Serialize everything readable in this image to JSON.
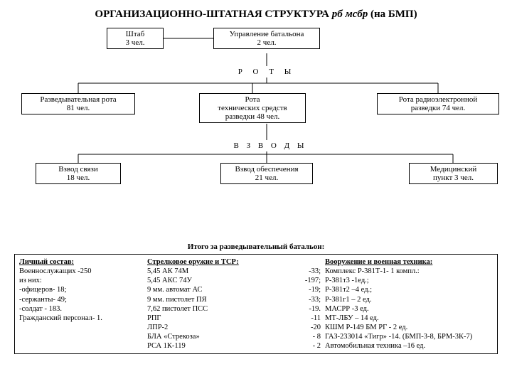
{
  "title_main": "ОРГАНИЗАЦИОННО-ШТАТНАЯ СТРУКТУРА",
  "title_italic": "рб мсбр",
  "title_tail": "(на БМП)",
  "boxes": {
    "shtab": "Штаб\n3 чел.",
    "upr": "Управление батальона\n2 чел.",
    "roty_label": "Р   О   Т   Ы",
    "rota1": "Разведывательная рота\n81 чел.",
    "rota2": "Рота\nтехнических средств\nразведки   48 чел.",
    "rota3": "Рота радиоэлектронной\nразведки      74 чел.",
    "vzvody_label": "В  З  В  О  Д  Ы",
    "vzv1": "Взвод связи\n18 чел.",
    "vzv2": "Взвод обеспечения\n21 чел.",
    "vzv3": "Медицинский\nпункт 3 чел."
  },
  "summary_title": "Итого за разведывательный батальон:",
  "personnel": {
    "head": "Личный состав:",
    "lines": [
      "Военнослужащих -250",
      "из них:",
      "-офицеров- 18;",
      "-сержанты- 49;",
      "-солдат   - 183.",
      "Гражданский персонал- 1."
    ]
  },
  "weapons": {
    "head": "Стрелковое оружие и ТСР:",
    "rows": [
      {
        "n": "5,45 АК 74М",
        "q": "-33;"
      },
      {
        "n": "5,45 АКС 74У",
        "q": "-197;"
      },
      {
        "n": "9 мм. автомат АС",
        "q": "-19;"
      },
      {
        "n": "9 мм. пистолет ПЯ",
        "q": "-33;"
      },
      {
        "n": "7,62 пистолет ПСС",
        "q": "-19."
      },
      {
        "n": "РПГ",
        "q": "-11"
      },
      {
        "n": "ЛПР-2",
        "q": "-20"
      },
      {
        "n": "БЛА «Стрекоза»",
        "q": "- 8"
      },
      {
        "n": "РСА 1К-119",
        "q": "- 2"
      }
    ]
  },
  "equip": {
    "head": "Вооружение и военная техника:",
    "lines": [
      "Комплекс Р-381Т-1- 1 компл.:",
      "Р-381т3 -1ед.;",
      "Р-381т2 –4 ед.;",
      "Р-381г1 – 2 ед.",
      "МАСРР -3 ед.",
      "МТ-ЛБУ – 14 ед.",
      "КШМ Р-149 БМ РГ - 2 ед.",
      "ГАЗ-233014 «Тигр» -14. (БМП-3-8, БРМ-3К-7)",
      "Автомобильная техника –16 ед."
    ]
  },
  "style": {
    "line_color": "#000000",
    "line_width": 1
  }
}
